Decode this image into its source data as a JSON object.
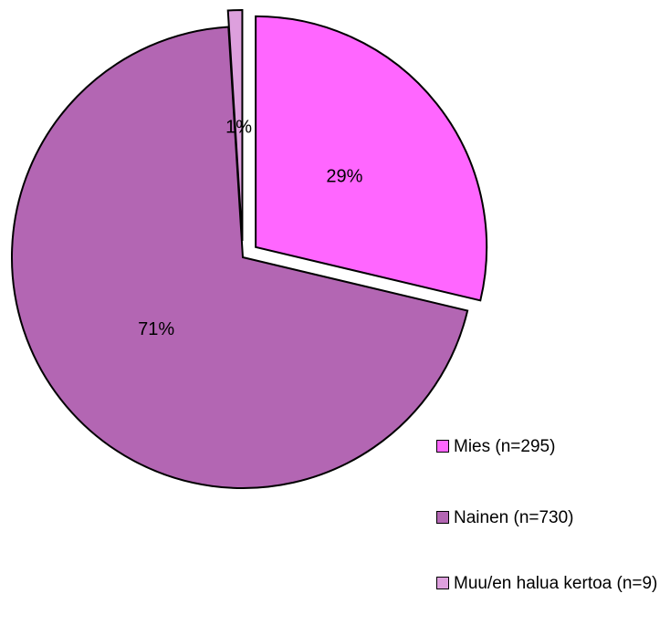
{
  "chart_data": {
    "type": "pie",
    "categories": [
      "Mies (n=295)",
      "Nainen (n=730)",
      "Muu/en halua kertoa (n=9)"
    ],
    "values": [
      29,
      71,
      1
    ],
    "value_labels": [
      "29%",
      "71%",
      "1%"
    ],
    "colors": [
      "#ff66ff",
      "#b366b3",
      "#dda0dd"
    ],
    "exploded": [
      true,
      false,
      true
    ]
  }
}
